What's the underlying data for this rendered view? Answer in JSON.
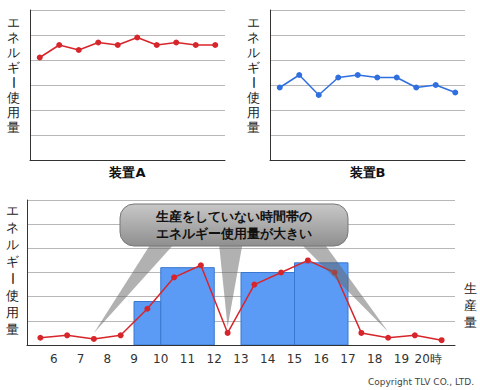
{
  "chart_data": [
    {
      "type": "line",
      "title": "装置A",
      "ylabel": "エネルギー使用量",
      "categories": [
        null,
        null,
        null,
        null,
        null,
        null,
        null,
        null,
        null,
        null
      ],
      "values": [
        4.1,
        4.6,
        4.4,
        4.7,
        4.6,
        4.9,
        4.6,
        4.7,
        4.6,
        4.6
      ],
      "color": "#d7262b",
      "marker": "circle",
      "ylim": [
        0,
        6
      ],
      "yticks": [
        0,
        1,
        2,
        3,
        4,
        5,
        6
      ],
      "grid": true,
      "tick_labels": false
    },
    {
      "type": "line",
      "title": "装置B",
      "ylabel": "エネルギー使用量",
      "categories": [
        null,
        null,
        null,
        null,
        null,
        null,
        null,
        null,
        null,
        null
      ],
      "values": [
        2.9,
        3.4,
        2.6,
        3.3,
        3.4,
        3.3,
        3.3,
        2.9,
        3.0,
        2.7
      ],
      "color": "#2f6fe0",
      "marker": "circle",
      "ylim": [
        0,
        6
      ],
      "yticks": [
        0,
        1,
        2,
        3,
        4,
        5,
        6
      ],
      "grid": true,
      "tick_labels": false
    },
    {
      "type": "combo",
      "ylabel": "エネルギー使用量",
      "y2label": "生産量",
      "xlim": [
        5,
        21
      ],
      "xticks": [
        6,
        7,
        8,
        9,
        10,
        11,
        12,
        13,
        14,
        15,
        16,
        17,
        18,
        19,
        {
          "value": 20,
          "label": "20時"
        }
      ],
      "ylim": [
        0,
        6
      ],
      "yticks": [
        0,
        1,
        2,
        3,
        4,
        5,
        6
      ],
      "y2lim": [
        0,
        6
      ],
      "y2ticks": [
        0,
        1,
        2,
        3,
        4,
        5,
        6
      ],
      "grid": true,
      "tick_labels": "x",
      "series": [
        {
          "type": "bar",
          "axis": "y2",
          "color": "#5b9bf5",
          "ranges": [
            [
              9,
              10
            ],
            [
              10,
              12
            ],
            [
              13,
              15
            ],
            [
              15,
              17
            ]
          ],
          "values": [
            1.8,
            3.2,
            3.0,
            3.4
          ]
        },
        {
          "type": "line",
          "color": "#d7262b",
          "marker": "circle",
          "x": [
            5.5,
            6.5,
            7.5,
            8.5,
            9.5,
            10.5,
            11.5,
            12.5,
            13.5,
            14.5,
            15.5,
            16.5,
            17.5,
            18.5,
            19.5,
            20.5
          ],
          "values": [
            0.3,
            0.4,
            0.25,
            0.4,
            1.5,
            2.8,
            3.3,
            0.5,
            2.5,
            3.0,
            3.5,
            3.0,
            0.5,
            0.3,
            0.4,
            0.2
          ]
        }
      ],
      "annotations": [
        {
          "text": [
            "生産をしていない時間帯の",
            "エネルギー使用量が大きい"
          ],
          "x": [
            7.5,
            12.5,
            18.5
          ]
        }
      ]
    }
  ],
  "copyright": "Copyright TLV CO., LTD."
}
